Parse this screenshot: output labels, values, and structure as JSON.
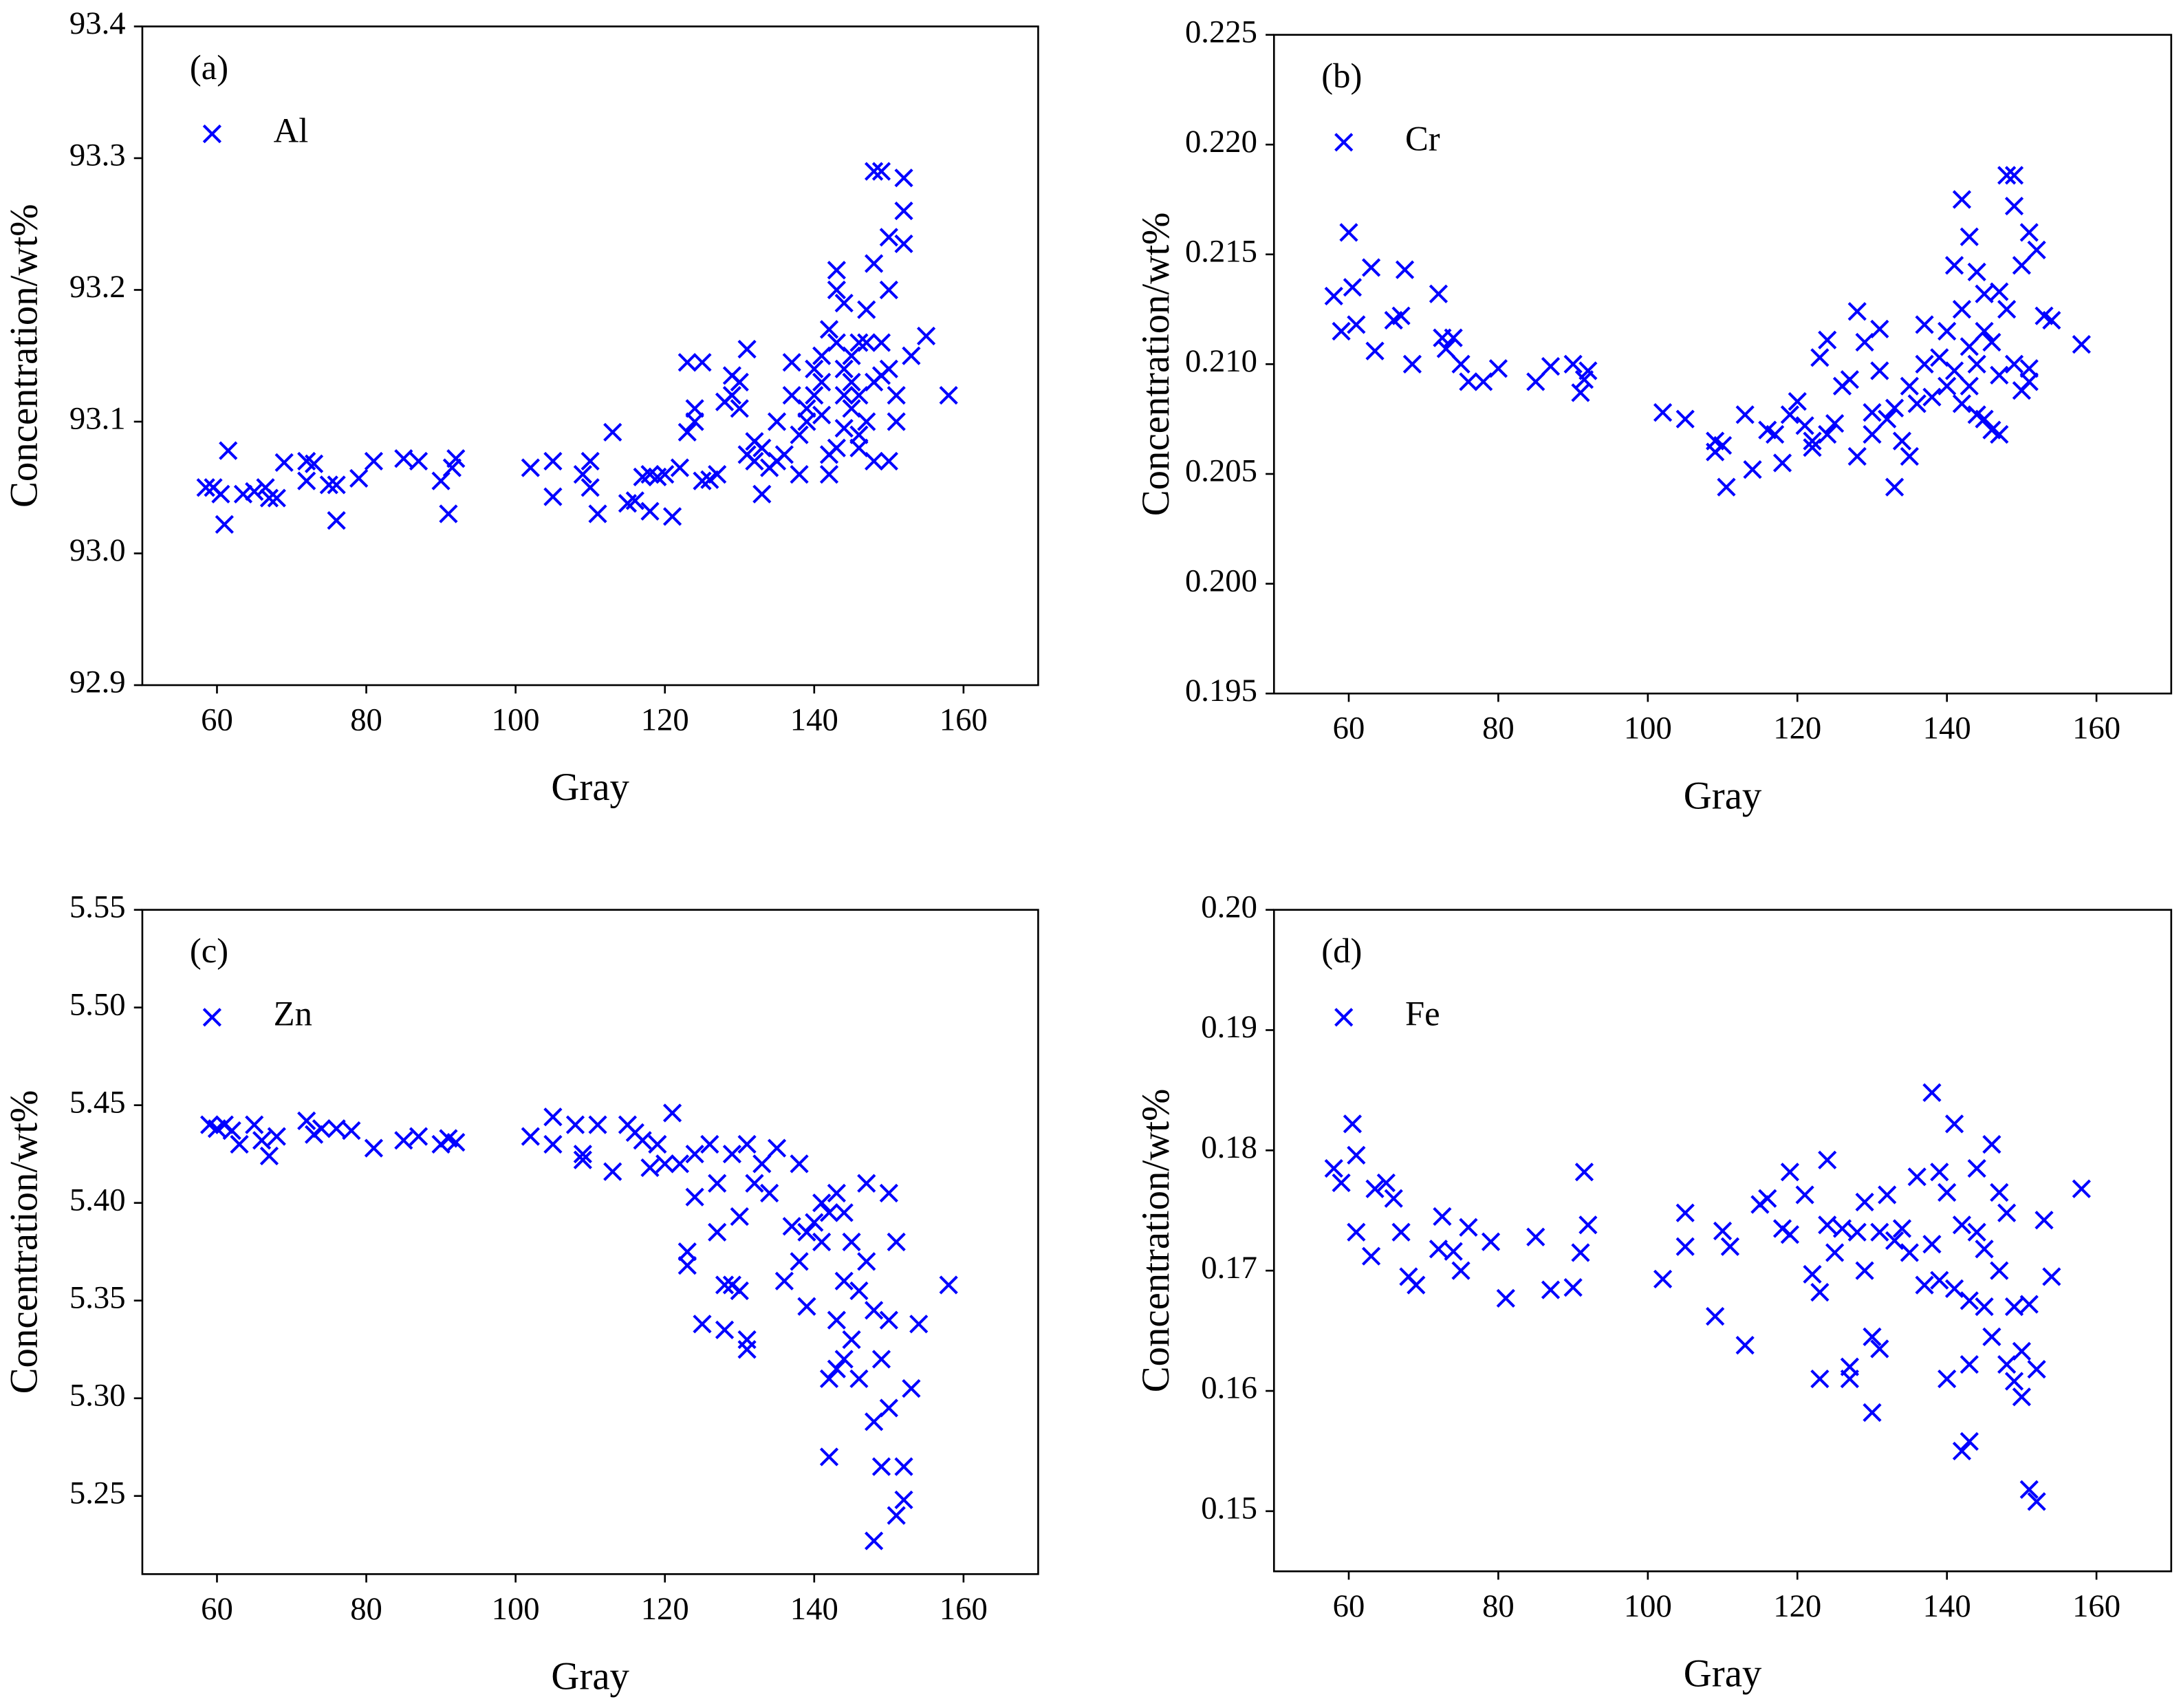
{
  "chart_data": [
    {
      "type": "scatter",
      "label": "(a)",
      "xlabel": "Gray",
      "ylabel": "Concentration/wt%",
      "legend": "upper left",
      "xlim": [
        50,
        170
      ],
      "xticks": [
        60,
        80,
        100,
        120,
        140,
        160
      ],
      "ylim": [
        92.9,
        93.4
      ],
      "yticks": [
        92.9,
        {
          "value": 93,
          "label": "93.0"
        },
        93.1,
        93.2,
        93.3,
        93.4
      ],
      "series": [
        {
          "name": "Al",
          "color": "#0000ff",
          "x": [
            58.5,
            59.5,
            60.5,
            61,
            61.5,
            63.5,
            65,
            66.5,
            67,
            68,
            69,
            72,
            72,
            73,
            75,
            76,
            76,
            79,
            81,
            85,
            87,
            90,
            91,
            91.5,
            92,
            102,
            105,
            105,
            109,
            110,
            110,
            111,
            113,
            115,
            116,
            117,
            118,
            118,
            119,
            120,
            121,
            122,
            123,
            123,
            124,
            124,
            125,
            125,
            126,
            127,
            128,
            129,
            129,
            130,
            130,
            131,
            131,
            132,
            132,
            133,
            133,
            134,
            135,
            135,
            136,
            137,
            137,
            138,
            138,
            139,
            139,
            140,
            140,
            141,
            141,
            141,
            142,
            142,
            142,
            143,
            143,
            143,
            143,
            144,
            144,
            144,
            144,
            145,
            145,
            145,
            146,
            146,
            146,
            146,
            147,
            147,
            147,
            148,
            148,
            148,
            148,
            149,
            149,
            149,
            150,
            150,
            150,
            150,
            151,
            151,
            152,
            152,
            152,
            153,
            155,
            158
          ],
          "values": [
            93.05,
            93.05,
            93.045,
            93.022,
            93.078,
            93.045,
            93.047,
            93.05,
            93.042,
            93.042,
            93.069,
            93.07,
            93.055,
            93.068,
            93.052,
            93.025,
            93.052,
            93.057,
            93.07,
            93.072,
            93.07,
            93.055,
            93.03,
            93.065,
            93.072,
            93.065,
            93.043,
            93.07,
            93.06,
            93.05,
            93.07,
            93.03,
            93.092,
            93.038,
            93.04,
            93.058,
            93.06,
            93.032,
            93.058,
            93.06,
            93.028,
            93.065,
            93.092,
            93.145,
            93.11,
            93.1,
            93.145,
            93.055,
            93.056,
            93.06,
            93.115,
            93.12,
            93.135,
            93.11,
            93.13,
            93.075,
            93.155,
            93.07,
            93.085,
            93.08,
            93.045,
            93.065,
            93.07,
            93.1,
            93.075,
            93.12,
            93.145,
            93.06,
            93.09,
            93.1,
            93.11,
            93.14,
            93.12,
            93.13,
            93.15,
            93.105,
            93.06,
            93.075,
            93.17,
            93.215,
            93.2,
            93.16,
            93.08,
            93.19,
            93.12,
            93.14,
            93.095,
            93.15,
            93.11,
            93.13,
            93.16,
            93.12,
            93.09,
            93.08,
            93.1,
            93.16,
            93.185,
            93.29,
            93.22,
            93.07,
            93.13,
            93.16,
            93.135,
            93.29,
            93.24,
            93.14,
            93.2,
            93.07,
            93.12,
            93.1,
            93.285,
            93.26,
            93.235,
            93.15,
            93.165,
            93.12
          ]
        }
      ]
    },
    {
      "type": "scatter",
      "label": "(b)",
      "xlabel": "Gray",
      "ylabel": "Concentration/wt%",
      "legend": "upper left",
      "xlim": [
        50,
        170
      ],
      "xticks": [
        60,
        80,
        100,
        120,
        140,
        160
      ],
      "ylim": [
        0.195,
        0.225
      ],
      "yticks": [
        0.195,
        {
          "value": 0.2,
          "label": "0.200"
        },
        0.205,
        {
          "value": 0.21,
          "label": "0.210"
        },
        0.215,
        {
          "value": 0.22,
          "label": "0.220"
        },
        0.225
      ],
      "series": [
        {
          "name": "Cr",
          "color": "#0000ff",
          "x": [
            58,
            59,
            60,
            60.5,
            61,
            63,
            63.5,
            66,
            67,
            67.5,
            68.5,
            72,
            72.5,
            73,
            74,
            75,
            76,
            78,
            80,
            85,
            87,
            90,
            91,
            91.5,
            92,
            102,
            105,
            109,
            109,
            110,
            110.5,
            113,
            114,
            116,
            117,
            118,
            119,
            120,
            121,
            122,
            122,
            123,
            124,
            124,
            125,
            126,
            127,
            128,
            128,
            129,
            130,
            130,
            131,
            131,
            132,
            133,
            133,
            134,
            135,
            135,
            136,
            137,
            137,
            138,
            139,
            140,
            140,
            141,
            141,
            142,
            142,
            142,
            143,
            143,
            143,
            144,
            144,
            144,
            145,
            145,
            145,
            146,
            146,
            147,
            147,
            147,
            148,
            148,
            149,
            149,
            149,
            150,
            150,
            151,
            151,
            151,
            152,
            153,
            154,
            158
          ],
          "values": [
            0.2131,
            0.2115,
            0.216,
            0.2135,
            0.2118,
            0.2144,
            0.2106,
            0.212,
            0.2122,
            0.2143,
            0.21,
            0.2132,
            0.2112,
            0.2107,
            0.2112,
            0.21,
            0.2092,
            0.2092,
            0.2098,
            0.2092,
            0.2099,
            0.21,
            0.2087,
            0.2093,
            0.2097,
            0.2078,
            0.2075,
            0.206,
            0.2065,
            0.2063,
            0.2044,
            0.2077,
            0.2052,
            0.207,
            0.2068,
            0.2055,
            0.2077,
            0.2083,
            0.2072,
            0.2062,
            0.2065,
            0.2103,
            0.2111,
            0.2068,
            0.2073,
            0.209,
            0.2093,
            0.2124,
            0.2058,
            0.211,
            0.2078,
            0.2068,
            0.2116,
            0.2097,
            0.2075,
            0.2044,
            0.208,
            0.2065,
            0.2058,
            0.209,
            0.2082,
            0.2118,
            0.21,
            0.2085,
            0.2103,
            0.2115,
            0.209,
            0.2097,
            0.2145,
            0.2175,
            0.2125,
            0.2082,
            0.2108,
            0.2158,
            0.209,
            0.2142,
            0.21,
            0.2077,
            0.2115,
            0.2075,
            0.2132,
            0.207,
            0.211,
            0.2133,
            0.2068,
            0.2095,
            0.2186,
            0.2125,
            0.2186,
            0.2172,
            0.21,
            0.2145,
            0.2088,
            0.2098,
            0.2092,
            0.216,
            0.2152,
            0.2122,
            0.212,
            0.2109
          ]
        }
      ]
    },
    {
      "type": "scatter",
      "label": "(c)",
      "xlabel": "Gray",
      "ylabel": "Concentration/wt%",
      "legend": "upper left",
      "xlim": [
        50,
        170
      ],
      "xticks": [
        60,
        80,
        100,
        120,
        140,
        160
      ],
      "ylim": [
        5.21,
        5.55
      ],
      "yticks": [
        5.25,
        {
          "value": 5.3,
          "label": "5.30"
        },
        5.35,
        {
          "value": 5.4,
          "label": "5.40"
        },
        5.45,
        {
          "value": 5.5,
          "label": "5.50"
        },
        5.55
      ],
      "series": [
        {
          "name": "Zn",
          "color": "#0000ff",
          "x": [
            59,
            60,
            61,
            62,
            63,
            65,
            66,
            67,
            68,
            72,
            73,
            74,
            76,
            78,
            81,
            85,
            87,
            90,
            91,
            92,
            102,
            105,
            105,
            108,
            109,
            109,
            111,
            113,
            115,
            116,
            117,
            118,
            119,
            120,
            121,
            122,
            123,
            123,
            124,
            124,
            125,
            126,
            127,
            127,
            128,
            128,
            129,
            129,
            130,
            130,
            131,
            131,
            131,
            132,
            133,
            134,
            135,
            136,
            137,
            138,
            138,
            139,
            139,
            140,
            141,
            141,
            142,
            142,
            142,
            143,
            143,
            143,
            144,
            144,
            144,
            145,
            145,
            146,
            146,
            147,
            147,
            148,
            148,
            148,
            149,
            149,
            150,
            150,
            150,
            151,
            151,
            152,
            152,
            153,
            154,
            158
          ],
          "values": [
            5.44,
            5.438,
            5.44,
            5.437,
            5.43,
            5.44,
            5.432,
            5.424,
            5.434,
            5.442,
            5.435,
            5.438,
            5.438,
            5.437,
            5.428,
            5.432,
            5.434,
            5.43,
            5.433,
            5.431,
            5.434,
            5.444,
            5.43,
            5.44,
            5.425,
            5.422,
            5.44,
            5.416,
            5.44,
            5.436,
            5.432,
            5.418,
            5.43,
            5.42,
            5.446,
            5.42,
            5.368,
            5.375,
            5.425,
            5.403,
            5.338,
            5.43,
            5.41,
            5.385,
            5.358,
            5.335,
            5.358,
            5.425,
            5.355,
            5.393,
            5.325,
            5.33,
            5.43,
            5.41,
            5.42,
            5.405,
            5.428,
            5.36,
            5.388,
            5.37,
            5.42,
            5.347,
            5.385,
            5.39,
            5.38,
            5.4,
            5.31,
            5.27,
            5.395,
            5.405,
            5.34,
            5.315,
            5.32,
            5.36,
            5.395,
            5.33,
            5.38,
            5.355,
            5.31,
            5.41,
            5.37,
            5.288,
            5.227,
            5.345,
            5.32,
            5.265,
            5.405,
            5.34,
            5.295,
            5.24,
            5.38,
            5.265,
            5.248,
            5.305,
            5.338,
            5.358
          ]
        }
      ]
    },
    {
      "type": "scatter",
      "label": "(d)",
      "xlabel": "Gray",
      "ylabel": "Concentration/wt%",
      "legend": "upper left",
      "xlim": [
        50,
        170
      ],
      "xticks": [
        60,
        80,
        100,
        120,
        140,
        160
      ],
      "ylim": [
        0.145,
        0.2
      ],
      "yticks": [
        0.15,
        0.16,
        0.17,
        0.18,
        0.19,
        {
          "value": 0.2,
          "label": "0.20"
        }
      ],
      "series": [
        {
          "name": "Fe",
          "color": "#0000ff",
          "x": [
            58,
            59,
            60.5,
            61,
            61,
            63,
            63.5,
            65,
            66,
            67,
            68,
            69,
            72,
            72.5,
            74,
            75,
            76,
            79,
            81,
            85,
            87,
            90,
            91,
            91.5,
            92,
            102,
            105,
            105,
            109,
            110,
            111,
            113,
            115,
            116,
            118,
            119,
            119,
            121,
            122,
            123,
            123,
            124,
            124,
            125,
            126,
            127,
            127,
            128,
            129,
            129,
            130,
            130,
            131,
            131,
            132,
            133,
            134,
            135,
            136,
            137,
            138,
            138,
            139,
            139,
            140,
            140,
            141,
            141,
            142,
            142,
            143,
            143,
            143,
            144,
            144,
            145,
            145,
            146,
            146,
            147,
            147,
            148,
            148,
            149,
            149,
            150,
            150,
            151,
            151,
            152,
            152,
            153,
            154,
            158
          ],
          "values": [
            0.1785,
            0.1773,
            0.1822,
            0.1796,
            0.1732,
            0.1712,
            0.1768,
            0.1773,
            0.176,
            0.1732,
            0.1695,
            0.1688,
            0.1718,
            0.1745,
            0.1716,
            0.17,
            0.1736,
            0.1724,
            0.1677,
            0.1728,
            0.1684,
            0.1686,
            0.1715,
            0.1782,
            0.1738,
            0.1693,
            0.1748,
            0.172,
            0.1662,
            0.1733,
            0.172,
            0.1638,
            0.1755,
            0.176,
            0.1735,
            0.1782,
            0.173,
            0.1763,
            0.1697,
            0.161,
            0.1682,
            0.1792,
            0.1738,
            0.1715,
            0.1735,
            0.162,
            0.161,
            0.1732,
            0.1757,
            0.17,
            0.1582,
            0.1645,
            0.1635,
            0.1732,
            0.1763,
            0.1725,
            0.1735,
            0.1715,
            0.1778,
            0.1688,
            0.1848,
            0.1722,
            0.1692,
            0.1782,
            0.161,
            0.1765,
            0.1822,
            0.1685,
            0.1738,
            0.155,
            0.1558,
            0.1622,
            0.1675,
            0.1732,
            0.1785,
            0.167,
            0.1718,
            0.1805,
            0.1645,
            0.1765,
            0.17,
            0.1622,
            0.1748,
            0.1608,
            0.167,
            0.1633,
            0.1595,
            0.1672,
            0.1518,
            0.1508,
            0.1618,
            0.1742,
            0.1695,
            0.1768
          ]
        }
      ]
    }
  ]
}
